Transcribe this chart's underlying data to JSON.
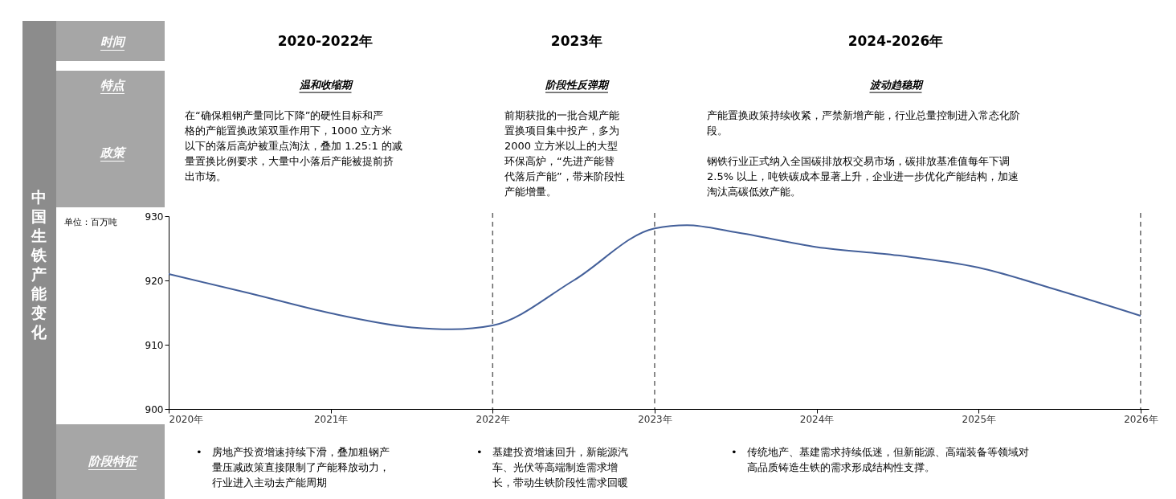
{
  "chart_data": {
    "type": "line",
    "ylabel": "单位：百万吨",
    "x": [
      2020,
      2020.5,
      2021,
      2021.5,
      2021.75,
      2022,
      2022.5,
      2023,
      2023.2,
      2023.5,
      2024,
      2024.5,
      2025,
      2025.5,
      2026
    ],
    "series": [
      {
        "color": "#44609a",
        "values": [
          921,
          918,
          914.9,
          912.7,
          912.4,
          913,
          920,
          928.1,
          928.6,
          927.5,
          925.2,
          923.9,
          922,
          918.4,
          914.5
        ]
      }
    ],
    "xlim": [
      2020,
      2026.05
    ],
    "xticks": [
      {
        "value": 2020,
        "label": "2020年"
      },
      {
        "value": 2021,
        "label": "2021年"
      },
      {
        "value": 2022,
        "label": "2022年"
      },
      {
        "value": 2023,
        "label": "2023年"
      },
      {
        "value": 2024,
        "label": "2024年"
      },
      {
        "value": 2025,
        "label": "2025年"
      },
      {
        "value": 2026,
        "label": "2026年"
      }
    ],
    "ylim": [
      900,
      930
    ],
    "yticks": [
      900,
      910,
      920,
      930
    ],
    "grid": false,
    "legend": false,
    "marker": "none",
    "line_style": "solid",
    "ref_lines": [
      {
        "axis": "x",
        "value": 2022,
        "color": "#666666",
        "line_style": "dashed"
      },
      {
        "axis": "x",
        "value": 2023,
        "color": "#666666",
        "line_style": "dashed"
      },
      {
        "axis": "x",
        "value": 2026,
        "color": "#666666",
        "line_style": "dashed"
      }
    ],
    "annotations": [
      "时间",
      "特点",
      "政策",
      "阶段特征",
      "中国生铁产能变化",
      "2020-2022年",
      "2023年",
      "2024-2026年",
      "温和收缩期",
      "阶段性反弹期",
      "波动趋稳期",
      "在“确保粗钢产量同比下降”的硬性目标和严格的产能置换政策双重作用下，1000 立方米以下的落后高炉被重点淘汰，叠加 1.25:1 的减量置换比例要求，大量中小落后产能被提前挤出市场。",
      "前期获批的一批合规产能置换项目集中投产，多为2000 立方米以上的大型环保高炉，“先进产能替代落后产能”，带来阶段性产能增量。",
      "产能置换政策持续收紧，严禁新增产能，行业总量控制进入常态化阶段。",
      "钢铁行业正式纳入全国碳排放权交易市场，碳排放基准值每年下调2.5% 以上，吨铁碳成本显著上升，企业进一步优化产能结构，加速淘汰高碳低效产能。",
      "• 房地产投资增速持续下滑，叠加粗钢产量压减政策直接限制了产能释放动力，行业进入主动去产能周期",
      "• 基建投资增速回升，新能源汽车、光伏等高端制造需求增长，带动生铁阶段性需求回暖",
      "• 传统地产、基建需求持续低迷，但新能源、高端装备等领域对高品质铸造生铁的需求形成结构性支撑。"
    ]
  }
}
